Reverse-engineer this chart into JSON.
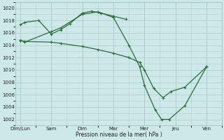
{
  "xlabel": "Pression niveau de la mer( hPa )",
  "bg_color": "#cde8e8",
  "grid_color": "#b0d0d0",
  "line_color": "#2d6b3c",
  "ylim": [
    1001,
    1021
  ],
  "yticks": [
    1002,
    1004,
    1006,
    1008,
    1010,
    1012,
    1014,
    1016,
    1018,
    1020
  ],
  "day_positions": [
    0,
    1,
    2,
    3,
    4,
    5,
    6
  ],
  "day_labels": [
    "Dim/Lun",
    "Sam",
    "Dim",
    "Mar",
    "Mer",
    "Jeu",
    "Ven"
  ],
  "series1_x": [
    0.0,
    0.15,
    0.6,
    1.0,
    1.3,
    1.6,
    2.0,
    2.3,
    2.6,
    3.0,
    3.4
  ],
  "series1_y": [
    1017.3,
    1017.7,
    1018.0,
    1015.8,
    1016.5,
    1017.5,
    1019.2,
    1019.5,
    1019.2,
    1018.7,
    1018.2
  ],
  "series2_x": [
    0.0,
    0.15,
    1.0,
    1.3,
    2.0,
    2.5,
    3.0,
    3.5,
    3.85,
    4.0,
    4.3,
    4.6,
    4.85,
    5.3,
    6.0
  ],
  "series2_y": [
    1014.8,
    1014.6,
    1014.5,
    1014.3,
    1013.8,
    1013.3,
    1012.7,
    1012.0,
    1011.2,
    1010.0,
    1007.0,
    1005.5,
    1006.5,
    1007.2,
    1010.5
  ],
  "series3_x": [
    0.0,
    0.15,
    1.0,
    1.3,
    2.0,
    2.5,
    3.0,
    3.5,
    3.85,
    4.0,
    4.35,
    4.55,
    4.8,
    5.3,
    6.0
  ],
  "series3_y": [
    1014.8,
    1014.5,
    1016.2,
    1016.8,
    1019.0,
    1019.4,
    1018.5,
    1014.0,
    1010.5,
    1007.5,
    1003.5,
    1002.0,
    1002.0,
    1004.2,
    1010.5
  ]
}
